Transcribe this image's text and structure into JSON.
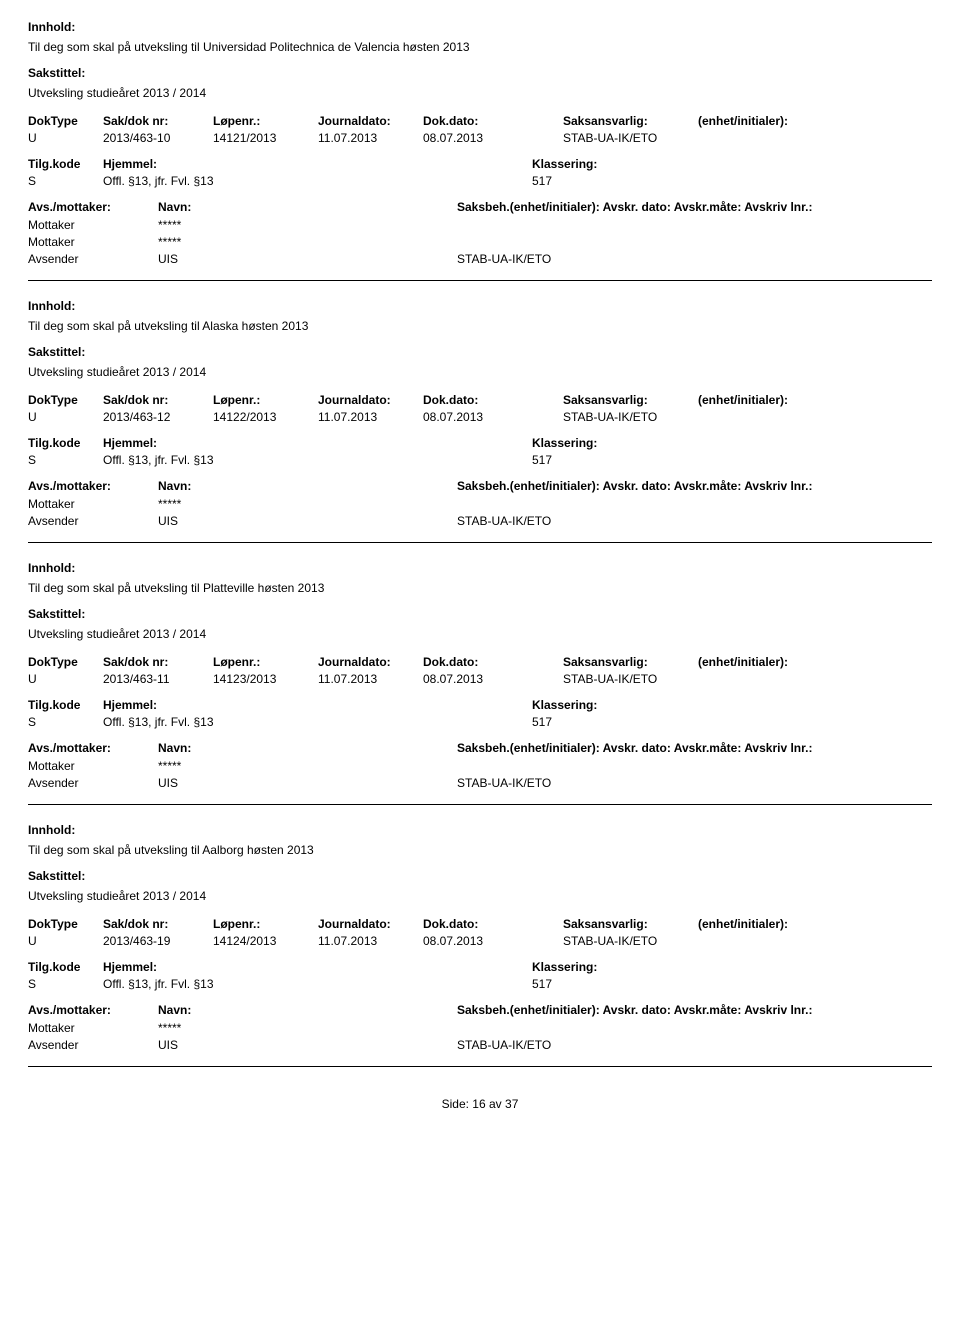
{
  "labels": {
    "innhold": "Innhold:",
    "sakstittel": "Sakstittel:",
    "doktype": "DokType",
    "sakdok": "Sak/dok nr:",
    "lopenr": "Løpenr.:",
    "journaldato": "Journaldato:",
    "dokdato": "Dok.dato:",
    "saksansvarlig": "Saksansvarlig:",
    "enhet": "(enhet/initialer):",
    "tilgkode": "Tilg.kode",
    "hjemmel": "Hjemmel:",
    "klassering": "Klassering:",
    "avsmottaker": "Avs./mottaker:",
    "navn": "Navn:",
    "saksbeh": "Saksbeh.(enhet/initialer): Avskr. dato: Avskr.måte: Avskriv lnr.:",
    "mottaker": "Mottaker",
    "avsender": "Avsender"
  },
  "entries": [
    {
      "innhold_text": "Til deg som skal på utveksling til Universidad Politechnica de Valencia høsten 2013",
      "sakstittel_text": "Utveksling studieåret 2013 / 2014",
      "doktype": "U",
      "sakdok": "2013/463-10",
      "lopenr": "14121/2013",
      "journaldato": "11.07.2013",
      "dokdato": "08.07.2013",
      "saksansvarlig": "STAB-UA-IK/ETO",
      "enhet": "",
      "tilgkode_val": "S",
      "hjemmel_val": "Offl. §13, jfr. Fvl. §13",
      "klassering_val": "517",
      "parties": [
        {
          "role": "Mottaker",
          "name": "*****",
          "unit": ""
        },
        {
          "role": "Mottaker",
          "name": "*****",
          "unit": ""
        },
        {
          "role": "Avsender",
          "name": "UIS",
          "unit": "STAB-UA-IK/ETO"
        }
      ]
    },
    {
      "innhold_text": "Til deg som skal på utveksling til Alaska høsten 2013",
      "sakstittel_text": "Utveksling studieåret 2013 / 2014",
      "doktype": "U",
      "sakdok": "2013/463-12",
      "lopenr": "14122/2013",
      "journaldato": "11.07.2013",
      "dokdato": "08.07.2013",
      "saksansvarlig": "STAB-UA-IK/ETO",
      "enhet": "",
      "tilgkode_val": "S",
      "hjemmel_val": "Offl. §13, jfr. Fvl. §13",
      "klassering_val": "517",
      "parties": [
        {
          "role": "Mottaker",
          "name": "*****",
          "unit": ""
        },
        {
          "role": "Avsender",
          "name": "UIS",
          "unit": "STAB-UA-IK/ETO"
        }
      ]
    },
    {
      "innhold_text": "Til deg som skal på utveksling til Platteville høsten 2013",
      "sakstittel_text": "Utveksling studieåret 2013 / 2014",
      "doktype": "U",
      "sakdok": "2013/463-11",
      "lopenr": "14123/2013",
      "journaldato": "11.07.2013",
      "dokdato": "08.07.2013",
      "saksansvarlig": "STAB-UA-IK/ETO",
      "enhet": "",
      "tilgkode_val": "S",
      "hjemmel_val": "Offl. §13, jfr. Fvl. §13",
      "klassering_val": "517",
      "parties": [
        {
          "role": "Mottaker",
          "name": "*****",
          "unit": ""
        },
        {
          "role": "Avsender",
          "name": "UIS",
          "unit": "STAB-UA-IK/ETO"
        }
      ]
    },
    {
      "innhold_text": "Til deg som skal på utveksling til Aalborg høsten 2013",
      "sakstittel_text": "Utveksling studieåret 2013 / 2014",
      "doktype": "U",
      "sakdok": "2013/463-19",
      "lopenr": "14124/2013",
      "journaldato": "11.07.2013",
      "dokdato": "08.07.2013",
      "saksansvarlig": "STAB-UA-IK/ETO",
      "enhet": "",
      "tilgkode_val": "S",
      "hjemmel_val": "Offl. §13, jfr. Fvl. §13",
      "klassering_val": "517",
      "parties": [
        {
          "role": "Mottaker",
          "name": "*****",
          "unit": ""
        },
        {
          "role": "Avsender",
          "name": "UIS",
          "unit": "STAB-UA-IK/ETO"
        }
      ]
    }
  ],
  "footer": {
    "side_label": "Side:",
    "page_current": "16",
    "page_sep": "av",
    "page_total": "37"
  }
}
